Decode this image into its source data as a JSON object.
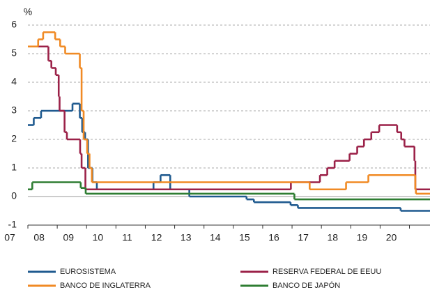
{
  "chart_data": {
    "type": "line",
    "step": true,
    "y_label": "%",
    "xlim": [
      2007,
      2020.7
    ],
    "xticks": [
      {
        "value": 2007,
        "label": "07"
      },
      {
        "value": 2008,
        "label": "08"
      },
      {
        "value": 2009,
        "label": "09"
      },
      {
        "value": 2010,
        "label": "10"
      },
      {
        "value": 2011,
        "label": "11"
      },
      {
        "value": 2012,
        "label": "12"
      },
      {
        "value": 2013,
        "label": "13"
      },
      {
        "value": 2014,
        "label": "14"
      },
      {
        "value": 2015,
        "label": "15"
      },
      {
        "value": 2016,
        "label": "16"
      },
      {
        "value": 2017,
        "label": "17"
      },
      {
        "value": 2018,
        "label": "18"
      },
      {
        "value": 2019,
        "label": "19"
      },
      {
        "value": 2020,
        "label": "20"
      }
    ],
    "ylim": [
      -1,
      6
    ],
    "yticks": [
      6,
      5,
      4,
      3,
      2,
      1,
      0,
      -1
    ],
    "grid": true,
    "legend": "bottom",
    "series": [
      {
        "name": "EUROSISTEMA",
        "color": "#1f5a8f",
        "x": [
          2007.0,
          2007.2,
          2007.45,
          2008.52,
          2008.77,
          2008.85,
          2008.95,
          2009.05,
          2009.2,
          2009.35,
          2011.28,
          2011.52,
          2011.85,
          2012.5,
          2014.45,
          2014.7,
          2015.95,
          2016.2,
          2019.7
        ],
        "values": [
          2.5,
          2.75,
          3.0,
          3.25,
          2.75,
          2.25,
          2.0,
          1.0,
          0.5,
          0.25,
          0.5,
          0.75,
          0.25,
          0.0,
          -0.1,
          -0.2,
          -0.3,
          -0.4,
          -0.5
        ]
      },
      {
        "name": "RESERVA FEDERAL DE EEUU",
        "color": "#9b2148",
        "x": [
          2007.0,
          2007.7,
          2007.8,
          2007.95,
          2008.05,
          2008.08,
          2008.25,
          2008.33,
          2008.78,
          2008.83,
          2008.96,
          2015.96,
          2016.95,
          2017.2,
          2017.45,
          2017.96,
          2018.22,
          2018.45,
          2018.7,
          2018.97,
          2019.58,
          2019.72,
          2019.83,
          2020.17,
          2020.2
        ],
        "values": [
          5.25,
          4.75,
          4.5,
          4.25,
          3.5,
          3.0,
          2.25,
          2.0,
          1.5,
          1.0,
          0.25,
          0.5,
          0.75,
          1.0,
          1.25,
          1.5,
          1.75,
          2.0,
          2.25,
          2.5,
          2.25,
          2.0,
          1.75,
          1.25,
          0.25
        ]
      },
      {
        "name": "BANCO DE INGLATERRA",
        "color": "#f08a24",
        "x": [
          2007.0,
          2007.35,
          2007.52,
          2007.93,
          2008.1,
          2008.27,
          2008.77,
          2008.83,
          2008.9,
          2009.02,
          2009.1,
          2009.18,
          2016.6,
          2017.84,
          2018.6,
          2020.2,
          2020.22
        ],
        "values": [
          5.25,
          5.5,
          5.75,
          5.5,
          5.25,
          5.0,
          4.5,
          3.0,
          2.0,
          1.5,
          1.0,
          0.5,
          0.25,
          0.5,
          0.75,
          0.25,
          0.1
        ]
      },
      {
        "name": "BANCO DE JAPÓN",
        "color": "#2e7d32",
        "x": [
          2007.0,
          2007.15,
          2008.8,
          2008.97,
          2016.08
        ],
        "values": [
          0.25,
          0.5,
          0.3,
          0.1,
          -0.1
        ]
      }
    ]
  }
}
